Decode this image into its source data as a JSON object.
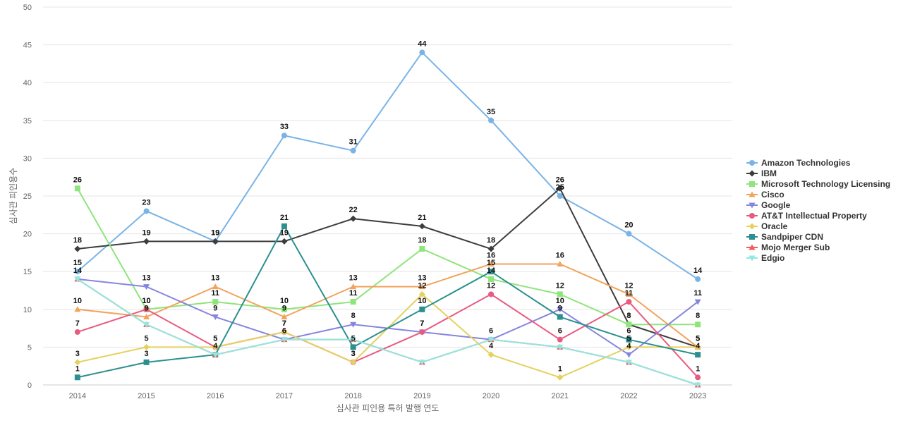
{
  "chart_data": {
    "type": "line",
    "xlabel": "심사관 피인용 특허 발행 연도",
    "ylabel": "심사관 피인용수",
    "x": [
      "2014",
      "2015",
      "2016",
      "2017",
      "2018",
      "2019",
      "2020",
      "2021",
      "2022",
      "2023"
    ],
    "ylim": [
      0,
      50
    ],
    "yticks": [
      0,
      5,
      10,
      15,
      20,
      25,
      30,
      35,
      40,
      45,
      50
    ],
    "grid": true,
    "legend_position": "right",
    "series": [
      {
        "name": "Amazon Technologies",
        "color": "#7ab3e6",
        "marker": "circle",
        "values": [
          15,
          23,
          19,
          33,
          31,
          44,
          35,
          25,
          20,
          14
        ]
      },
      {
        "name": "IBM",
        "color": "#3d3d3d",
        "marker": "diamond",
        "values": [
          18,
          19,
          19,
          19,
          22,
          21,
          18,
          26,
          8,
          5
        ]
      },
      {
        "name": "Microsoft Technology Licensing",
        "color": "#8ee57b",
        "marker": "square",
        "values": [
          26,
          10,
          11,
          10,
          11,
          18,
          14,
          12,
          8,
          8
        ]
      },
      {
        "name": "Cisco",
        "color": "#f2a35c",
        "marker": "triangle-up",
        "values": [
          10,
          9,
          13,
          9,
          13,
          13,
          16,
          16,
          12,
          5
        ]
      },
      {
        "name": "Google",
        "color": "#8585e0",
        "marker": "triangle-down",
        "values": [
          14,
          13,
          9,
          6,
          8,
          7,
          6,
          10,
          4,
          11
        ]
      },
      {
        "name": "AT&T Intellectual Property",
        "color": "#ea5a80",
        "marker": "circle",
        "values": [
          7,
          10,
          5,
          7,
          3,
          7,
          12,
          6,
          11,
          1
        ]
      },
      {
        "name": "Oracle",
        "color": "#e6d160",
        "marker": "diamond",
        "values": [
          3,
          5,
          5,
          7,
          3,
          12,
          4,
          1,
          5,
          5
        ]
      },
      {
        "name": "Sandpiper CDN",
        "color": "#2b908f",
        "marker": "square",
        "values": [
          1,
          3,
          4,
          21,
          5,
          10,
          15,
          9,
          6,
          4
        ]
      },
      {
        "name": "Mojo Merger Sub",
        "color": "#f45b5b",
        "marker": "triangle-up",
        "values": [
          14,
          8,
          4,
          6,
          6,
          3,
          6,
          5,
          3,
          0
        ]
      },
      {
        "name": "Edgio",
        "color": "#91e8e1",
        "marker": "triangle-down",
        "values": [
          14,
          8,
          4,
          6,
          6,
          3,
          6,
          5,
          3,
          0
        ]
      }
    ],
    "data_labels": [
      {
        "series": 0,
        "points": [
          0,
          1,
          2,
          3,
          4,
          5,
          6,
          7,
          8,
          9
        ]
      },
      {
        "series": 1,
        "points": [
          0,
          1,
          2,
          3,
          4,
          5,
          6,
          7,
          8,
          9
        ]
      },
      {
        "series": 2,
        "points": [
          0,
          1,
          2,
          3,
          4,
          5,
          6,
          7,
          8,
          9
        ]
      },
      {
        "series": 3,
        "points": [
          0,
          1,
          2,
          3,
          4,
          5,
          6,
          7,
          8,
          9
        ]
      },
      {
        "series": 4,
        "points": [
          0,
          1,
          2,
          3,
          4,
          5,
          6,
          7,
          8,
          9
        ]
      },
      {
        "series": 5,
        "points": [
          0,
          1,
          2,
          3,
          4,
          5,
          6,
          7,
          8,
          9
        ]
      },
      {
        "series": 6,
        "points": [
          0,
          1,
          2,
          3,
          4,
          5,
          6,
          7,
          8,
          9
        ]
      },
      {
        "series": 7,
        "points": [
          0,
          1,
          2,
          3,
          4,
          5,
          6,
          7,
          8,
          9
        ]
      }
    ]
  }
}
